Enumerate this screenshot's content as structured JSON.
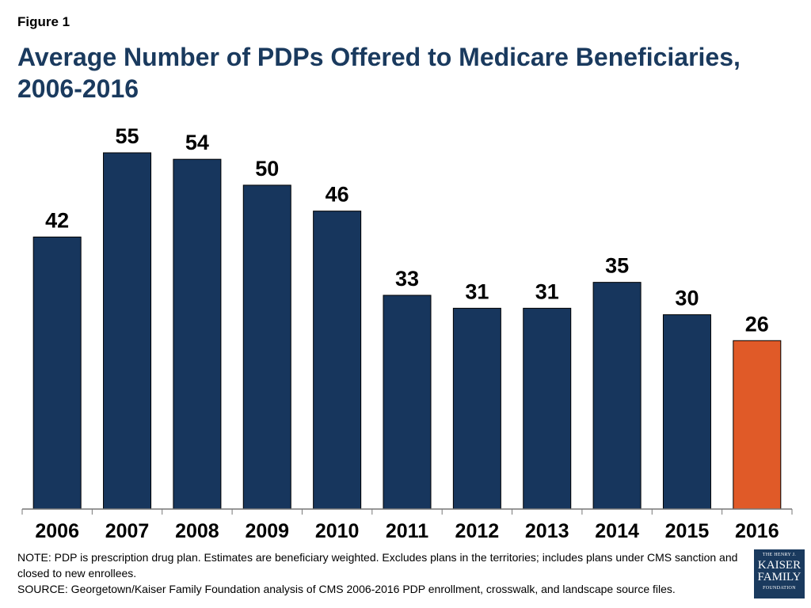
{
  "figure_label": "Figure 1",
  "title": "Average Number of PDPs Offered to Medicare Beneficiaries, 2006-2016",
  "notes": {
    "note": "NOTE: PDP is prescription drug plan. Estimates are beneficiary weighted. Excludes plans in the territories; includes plans under CMS sanction and closed to new enrollees.",
    "source": "SOURCE:  Georgetown/Kaiser Family Foundation analysis of CMS 2006-2016 PDP enrollment, crosswalk, and landscape source files."
  },
  "logo": {
    "line1": "THE HENRY J.",
    "line2": "KAISER",
    "line3": "FAMILY",
    "line4": "FOUNDATION"
  },
  "colors": {
    "bar": "#17365d",
    "highlight": "#e05a28",
    "title": "#1a3a5e"
  },
  "chart_data": {
    "type": "bar",
    "title": "Average Number of PDPs Offered to Medicare Beneficiaries, 2006-2016",
    "xlabel": "",
    "ylabel": "",
    "ylim": [
      0,
      55
    ],
    "grid": false,
    "legend": "none",
    "categories": [
      "2006",
      "2007",
      "2008",
      "2009",
      "2010",
      "2011",
      "2012",
      "2013",
      "2014",
      "2015",
      "2016"
    ],
    "values": [
      42,
      55,
      54,
      50,
      46,
      33,
      31,
      31,
      35,
      30,
      26
    ],
    "highlight_index": 10
  }
}
